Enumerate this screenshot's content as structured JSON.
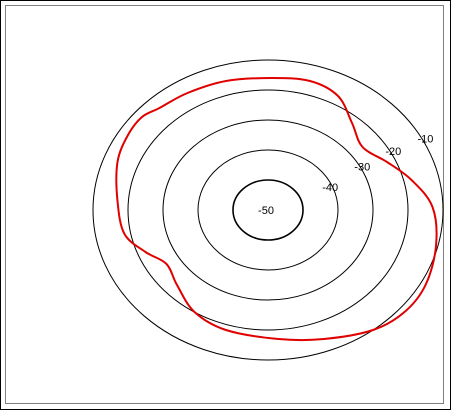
{
  "chart_data": {
    "type": "contour",
    "title": "",
    "xlabel": "",
    "ylabel": "",
    "grid": false,
    "contours": [
      {
        "level": -50,
        "label": "-50",
        "radius": 1.0
      },
      {
        "level": -40,
        "label": "-40",
        "radius": 2.0
      },
      {
        "level": -30,
        "label": "-30",
        "radius": 3.0
      },
      {
        "level": -20,
        "label": "-20",
        "radius": 4.0
      },
      {
        "level": -10,
        "label": "-10",
        "radius": 5.0
      }
    ],
    "red_curve": {
      "color": "#e00000",
      "points": [
        [
          -3.1,
          3.4
        ],
        [
          -2.3,
          3.9
        ],
        [
          -1.2,
          4.3
        ],
        [
          0.1,
          4.4
        ],
        [
          1.2,
          4.3
        ],
        [
          2.0,
          3.8
        ],
        [
          2.4,
          2.9
        ],
        [
          2.7,
          2.1
        ],
        [
          3.4,
          1.6
        ],
        [
          4.1,
          1.0
        ],
        [
          4.7,
          0.1
        ],
        [
          4.8,
          -1.2
        ],
        [
          4.5,
          -2.5
        ],
        [
          3.9,
          -3.4
        ],
        [
          3.0,
          -4.0
        ],
        [
          1.6,
          -4.3
        ],
        [
          0.3,
          -4.3
        ],
        [
          -1.2,
          -4.0
        ],
        [
          -2.1,
          -3.4
        ],
        [
          -2.6,
          -2.5
        ],
        [
          -2.9,
          -1.8
        ],
        [
          -3.5,
          -1.4
        ],
        [
          -4.1,
          -0.8
        ],
        [
          -4.3,
          0.3
        ],
        [
          -4.3,
          1.6
        ],
        [
          -4.0,
          2.5
        ],
        [
          -3.6,
          3.1
        ],
        [
          -3.1,
          3.4
        ]
      ]
    },
    "colors": {
      "contour_line": "#000000",
      "highlight": "#e00000",
      "frame": "#808080",
      "background": "#ffffff"
    }
  }
}
